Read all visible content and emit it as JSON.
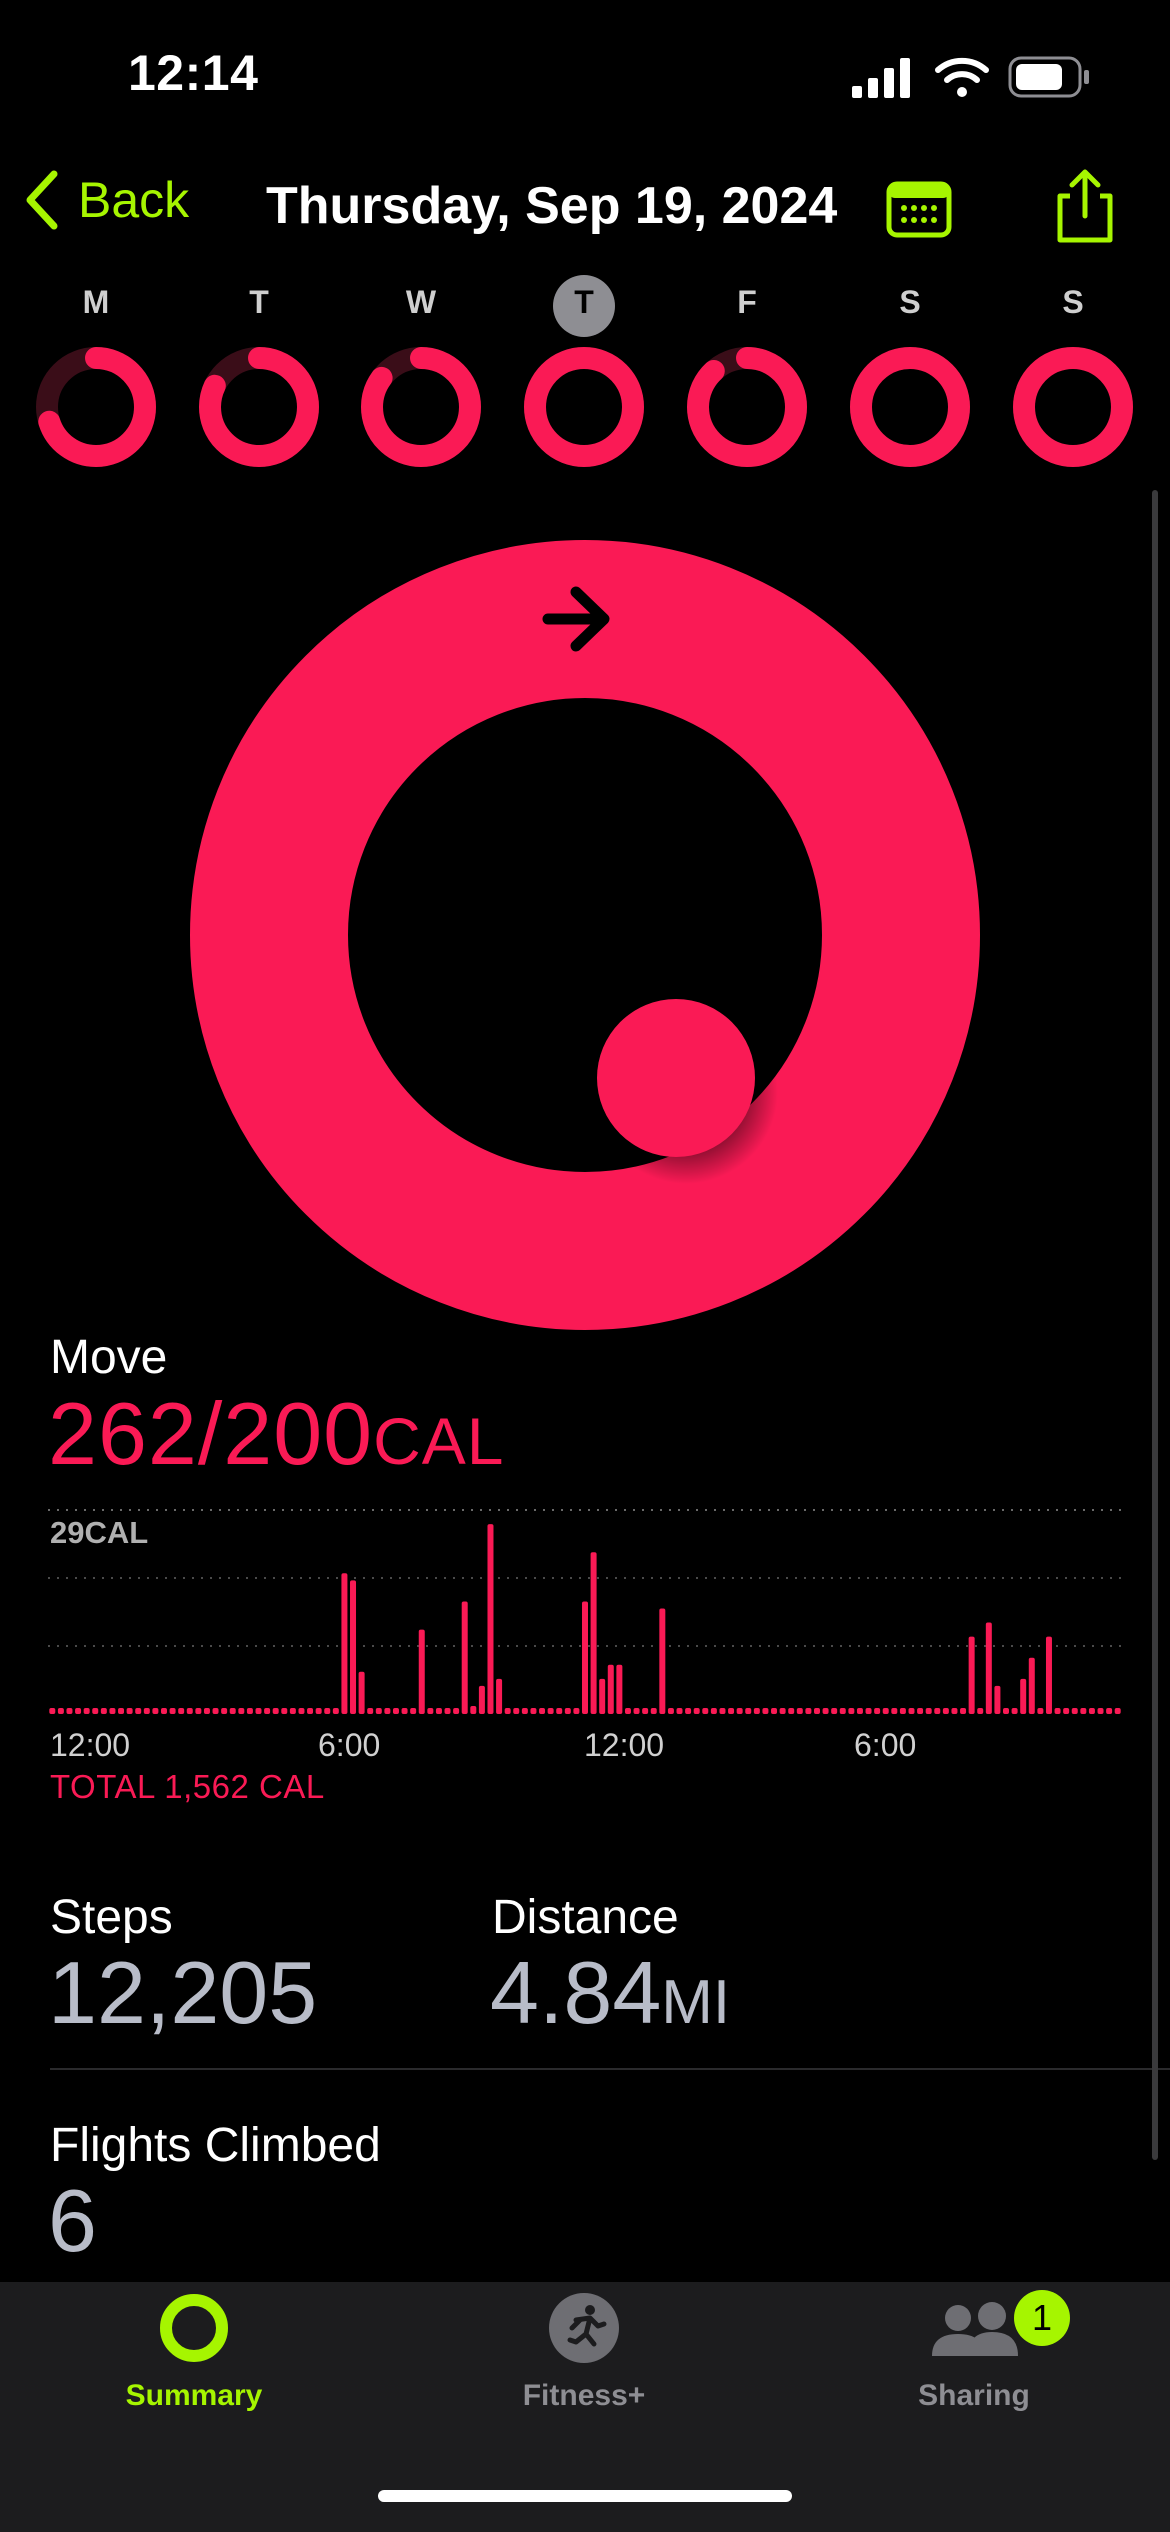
{
  "status_bar": {
    "time": "12:14"
  },
  "nav": {
    "back_label": "Back",
    "title": "Thursday, Sep 19, 2024"
  },
  "week": [
    {
      "letter": "M",
      "progress": 0.7
    },
    {
      "letter": "T",
      "progress": 0.82
    },
    {
      "letter": "W",
      "progress": 0.85
    },
    {
      "letter": "T",
      "progress": 1.0,
      "selected": true
    },
    {
      "letter": "F",
      "progress": 0.88
    },
    {
      "letter": "S",
      "progress": 1.0
    },
    {
      "letter": "S",
      "progress": 1.0
    }
  ],
  "colors": {
    "move": "#fa1a55",
    "accent": "#a6f500",
    "secondary_text": "#b8bcc8"
  },
  "move": {
    "label": "Move",
    "value": "262/200",
    "unit": "CAL",
    "progress": 1.31
  },
  "chart_data": {
    "type": "bar",
    "title": "",
    "ylabel": "29CAL",
    "xticks": [
      "12:00",
      "6:00",
      "12:00",
      "6:00"
    ],
    "total": "TOTAL 1,562 CAL",
    "ylim": [
      0,
      29
    ],
    "values": [
      0,
      0,
      0,
      0,
      0,
      0,
      0,
      0,
      0,
      0,
      0,
      0,
      0,
      0,
      0,
      0,
      0,
      0,
      0,
      0,
      0,
      0,
      0,
      0,
      0,
      0,
      0,
      0,
      0,
      0,
      0,
      0,
      0,
      0,
      20,
      19,
      6,
      0,
      0,
      0,
      0,
      0,
      0,
      12,
      0,
      0,
      0,
      0,
      16,
      1,
      4,
      27,
      5,
      0,
      0,
      0,
      0,
      0,
      0,
      0,
      0,
      0,
      16,
      23,
      5,
      7,
      7,
      0,
      0,
      0,
      0,
      15,
      0,
      0,
      0,
      0,
      0,
      0,
      0,
      0,
      0,
      0,
      0,
      0,
      0,
      0,
      0,
      0,
      0,
      0,
      0,
      0,
      0,
      0,
      0,
      0,
      0,
      0,
      0,
      0,
      0,
      0,
      0,
      0,
      0,
      0,
      0,
      11,
      0,
      13,
      4,
      0,
      0,
      5,
      8,
      0,
      11,
      0,
      0,
      0,
      0,
      0,
      0,
      0,
      0
    ]
  },
  "stats": {
    "steps": {
      "label": "Steps",
      "value": "12,205"
    },
    "distance": {
      "label": "Distance",
      "value": "4.84",
      "unit": "MI"
    },
    "flights": {
      "label": "Flights Climbed",
      "value": "6"
    }
  },
  "tabs": [
    {
      "label": "Summary",
      "icon": "summary-ring-icon",
      "active": true
    },
    {
      "label": "Fitness+",
      "icon": "fitness-runner-icon"
    },
    {
      "label": "Sharing",
      "icon": "sharing-people-icon",
      "badge": "1"
    }
  ]
}
